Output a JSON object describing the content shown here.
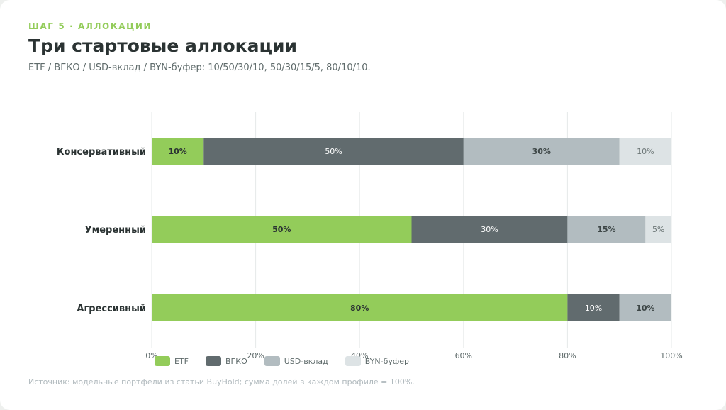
{
  "header": {
    "step": "ШАГ 5 · АЛЛОКАЦИИ",
    "title": "Три стартовые аллокации",
    "subtitle": "ETF / ВГКО / USD-вклад / BYN-буфер: 10/50/30/10, 50/30/15/5, 80/10/10."
  },
  "footer": {
    "source": "Источник: модельные портфели из статьи BuyHold; сумма долей в каждом профиле = 100%."
  },
  "chart_data": {
    "type": "bar",
    "orientation": "horizontal",
    "stacked": true,
    "categories": [
      "Консервативный",
      "Умеренный",
      "Агрессивный"
    ],
    "series": [
      {
        "name": "ETF",
        "color": "#93cc5a",
        "label_color": "#2b3333",
        "values": [
          10,
          50,
          80
        ]
      },
      {
        "name": "ВГКО",
        "color": "#616b6e",
        "label_color": "#ffffff",
        "values": [
          50,
          30,
          10
        ]
      },
      {
        "name": "USD-вклад",
        "color": "#b2bcc0",
        "label_color": "#3d4646",
        "values": [
          30,
          15,
          10
        ]
      },
      {
        "name": "BYN-буфер",
        "color": "#dde3e5",
        "label_color": "#6c7676",
        "values": [
          10,
          5,
          0
        ]
      }
    ],
    "xlim": [
      0,
      100
    ],
    "xticks": [
      0,
      20,
      40,
      60,
      80,
      100
    ],
    "xtick_suffix": "%",
    "grid": true,
    "legend_position": "bottom-left"
  }
}
